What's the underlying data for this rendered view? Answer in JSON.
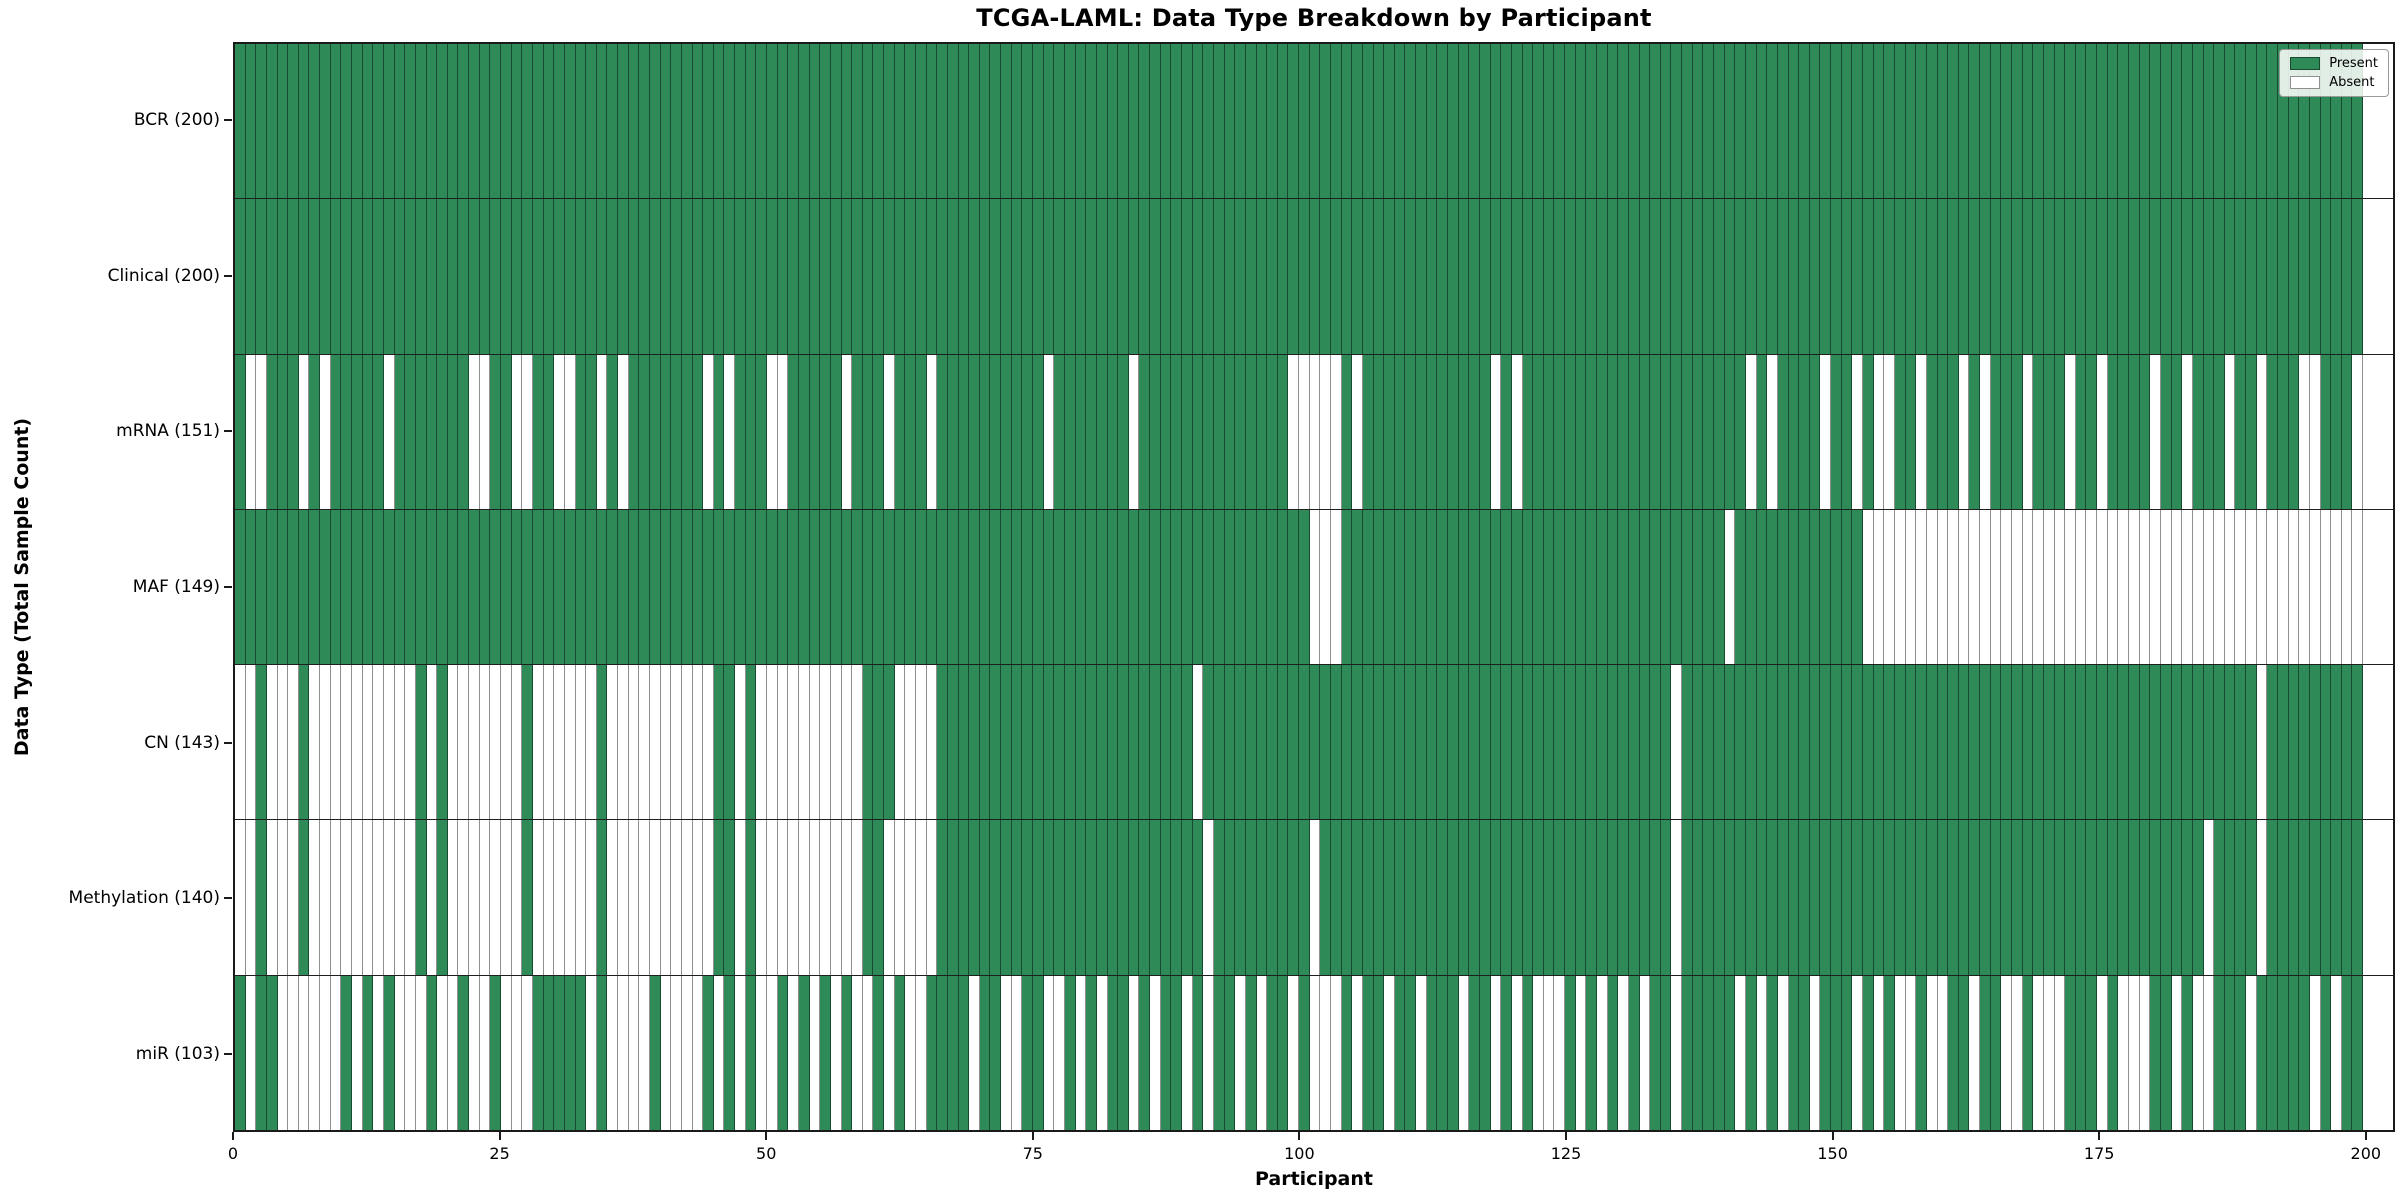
{
  "chart_data": {
    "type": "heatmap",
    "title": "TCGA-LAML: Data Type Breakdown by Participant",
    "xlabel": "Participant",
    "ylabel": "Data Type (Total Sample Count)",
    "x_ticks": [
      0,
      25,
      50,
      75,
      100,
      125,
      150,
      175,
      200
    ],
    "x_range": [
      0,
      200
    ],
    "n_participants": 200,
    "grid": false,
    "legend_position": "upper right",
    "colors": {
      "present": "#2e8b57",
      "absent": "#ffffff"
    },
    "legend": [
      {
        "label": "Present",
        "state": "present"
      },
      {
        "label": "Absent",
        "state": "absent"
      }
    ],
    "rows": [
      {
        "name": "BCR",
        "label": "BCR (200)",
        "present_count": 200,
        "absent_participants": []
      },
      {
        "name": "Clinical",
        "label": "Clinical (200)",
        "present_count": 200,
        "absent_participants": []
      },
      {
        "name": "mRNA",
        "label": "mRNA (151)",
        "present_count": 151,
        "absent_participants": [
          1,
          2,
          6,
          8,
          14,
          22,
          23,
          26,
          27,
          30,
          31,
          34,
          36,
          44,
          46,
          50,
          51,
          57,
          61,
          65,
          76,
          84,
          99,
          100,
          101,
          102,
          103,
          105,
          118,
          120,
          142,
          144,
          149,
          152,
          154,
          155,
          158,
          162,
          164,
          168,
          172,
          175,
          180,
          183,
          187,
          190,
          194,
          195,
          199
        ]
      },
      {
        "name": "MAF",
        "label": "MAF (149)",
        "present_count": 149,
        "absent_participants": [
          101,
          102,
          103,
          140,
          153,
          154,
          155,
          156,
          157,
          158,
          159,
          160,
          161,
          162,
          163,
          164,
          165,
          166,
          167,
          168,
          169,
          170,
          171,
          172,
          173,
          174,
          175,
          176,
          177,
          178,
          179,
          180,
          181,
          182,
          183,
          184,
          185,
          186,
          187,
          188,
          189,
          190,
          191,
          192,
          193,
          194,
          195,
          196,
          197,
          198,
          199
        ]
      },
      {
        "name": "CN",
        "label": "CN (143)",
        "present_count": 143,
        "absent_participants": [
          0,
          1,
          3,
          4,
          5,
          7,
          8,
          9,
          10,
          11,
          12,
          13,
          14,
          15,
          16,
          18,
          20,
          21,
          22,
          23,
          24,
          25,
          26,
          28,
          29,
          30,
          31,
          32,
          33,
          35,
          36,
          37,
          38,
          39,
          40,
          41,
          42,
          43,
          44,
          47,
          49,
          50,
          51,
          52,
          53,
          54,
          55,
          56,
          57,
          58,
          62,
          63,
          64,
          65,
          90,
          135,
          190
        ]
      },
      {
        "name": "Methylation",
        "label": "Methylation (140)",
        "present_count": 140,
        "absent_participants": [
          0,
          1,
          3,
          4,
          5,
          7,
          8,
          9,
          10,
          11,
          12,
          13,
          14,
          15,
          16,
          18,
          20,
          21,
          22,
          23,
          24,
          25,
          26,
          28,
          29,
          30,
          31,
          32,
          33,
          35,
          36,
          37,
          38,
          39,
          40,
          41,
          42,
          43,
          44,
          47,
          49,
          50,
          51,
          52,
          53,
          54,
          55,
          56,
          57,
          58,
          61,
          62,
          63,
          64,
          65,
          91,
          101,
          135,
          185,
          190
        ]
      },
      {
        "name": "miR",
        "label": "miR (103)",
        "present_count": 103,
        "absent_participants": [
          1,
          4,
          5,
          6,
          7,
          8,
          9,
          11,
          13,
          15,
          16,
          17,
          19,
          20,
          22,
          23,
          25,
          26,
          27,
          33,
          35,
          36,
          37,
          38,
          40,
          41,
          42,
          43,
          45,
          47,
          49,
          50,
          52,
          54,
          56,
          58,
          59,
          61,
          63,
          64,
          69,
          72,
          73,
          76,
          77,
          79,
          81,
          84,
          86,
          89,
          91,
          94,
          96,
          99,
          101,
          102,
          103,
          105,
          108,
          111,
          115,
          118,
          120,
          122,
          123,
          124,
          126,
          128,
          130,
          132,
          135,
          141,
          143,
          145,
          148,
          152,
          154,
          156,
          157,
          159,
          160,
          163,
          166,
          167,
          169,
          170,
          171,
          175,
          177,
          178,
          179,
          182,
          184,
          185,
          189,
          195,
          197
        ]
      }
    ]
  }
}
